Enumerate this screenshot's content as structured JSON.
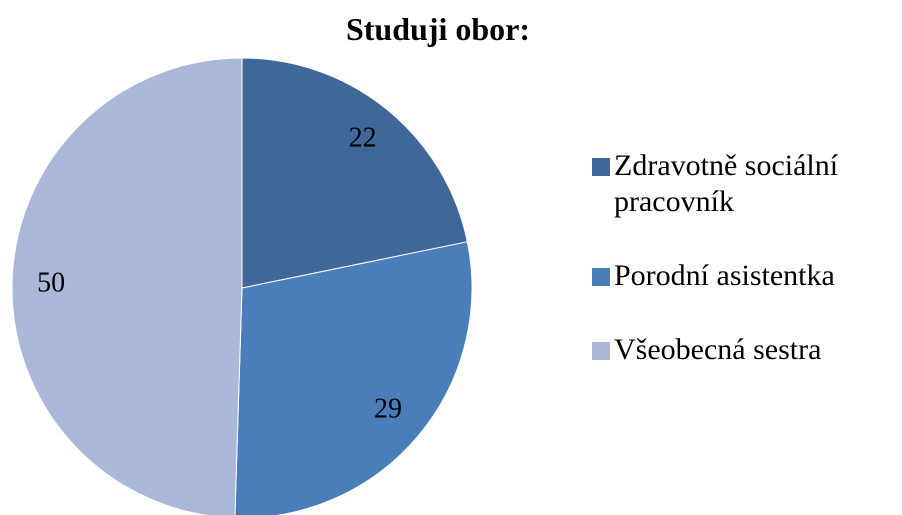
{
  "chart_data": {
    "type": "pie",
    "title": "Studuji obor:",
    "categories": [
      "Zdravotně sociální pracovník",
      "Porodní asistentka",
      "Všeobecná sestra"
    ],
    "values": [
      22,
      29,
      50
    ],
    "colors": [
      "#3f6899",
      "#4a7ebb",
      "#a9b8d6"
    ],
    "legend": "right"
  }
}
